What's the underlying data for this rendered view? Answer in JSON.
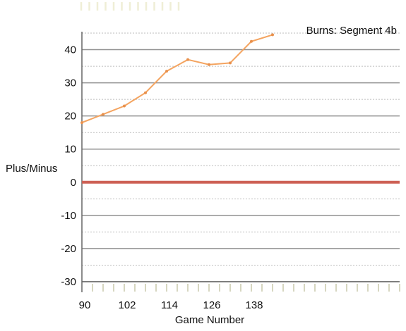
{
  "chart_data": {
    "type": "line",
    "title": "Burns: Segment 4b",
    "xlabel": "Game Number",
    "ylabel": "Plus/Minus",
    "xlim": [
      90,
      180
    ],
    "ylim": [
      -30,
      45
    ],
    "x_ticks": [
      90,
      102,
      114,
      126,
      138
    ],
    "y_ticks": [
      40,
      30,
      20,
      10,
      0,
      -10,
      -20,
      -30
    ],
    "y_minor_ticks": [
      45,
      35,
      25,
      15,
      5,
      -5,
      -15,
      -25
    ],
    "grid": true,
    "series": [
      {
        "color": "#f4a460",
        "x": [
          90,
          96,
          102,
          108,
          114,
          120,
          126,
          132,
          138,
          144
        ],
        "y": [
          18,
          20.5,
          23,
          27,
          33.5,
          37,
          35.5,
          36,
          42.5,
          44.5
        ]
      },
      {
        "color": "#cd6155",
        "x": [
          90,
          180
        ],
        "y": [
          0,
          0
        ]
      }
    ]
  }
}
